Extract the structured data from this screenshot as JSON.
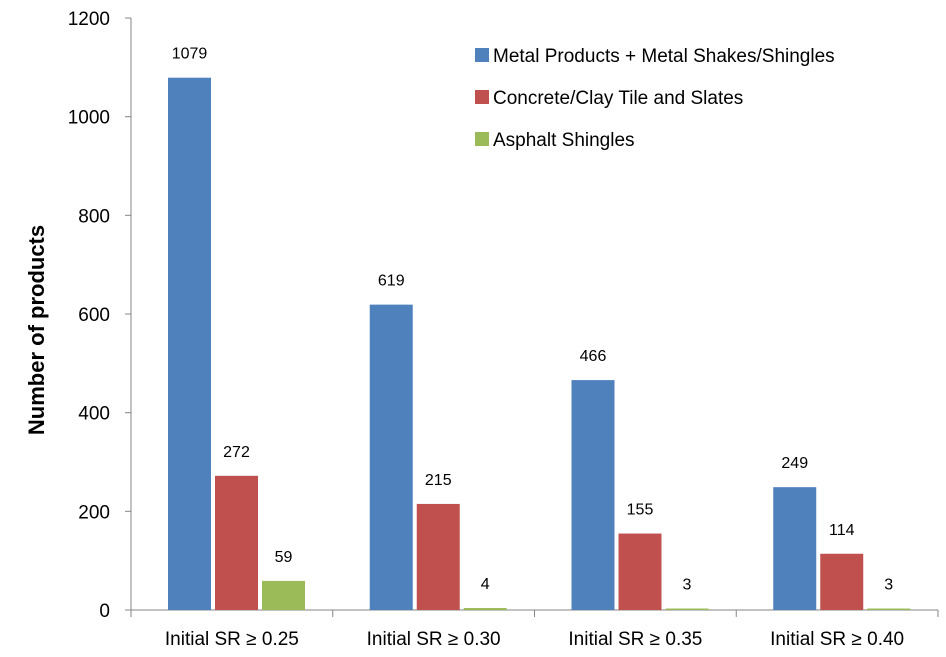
{
  "chart_data": {
    "type": "bar",
    "categories": [
      "Initial SR ≥ 0.25",
      "Initial SR ≥ 0.30",
      "Initial SR ≥ 0.35",
      "Initial SR ≥ 0.40"
    ],
    "series": [
      {
        "name": "Metal Products + Metal Shakes/Shingles",
        "color": "#4F81BD",
        "values": [
          1079,
          619,
          466,
          249
        ]
      },
      {
        "name": "Concrete/Clay Tile and Slates",
        "color": "#C0504D",
        "values": [
          272,
          215,
          155,
          114
        ]
      },
      {
        "name": "Asphalt Shingles",
        "color": "#9BBB59",
        "values": [
          59,
          4,
          3,
          3
        ]
      }
    ],
    "title": "",
    "xlabel": "",
    "ylabel": "Number of products",
    "ylim": [
      0,
      1200
    ],
    "yticks": [
      0,
      200,
      400,
      600,
      800,
      1000,
      1200
    ],
    "grid": false,
    "legend_position": "top-right",
    "data_labels": true
  }
}
